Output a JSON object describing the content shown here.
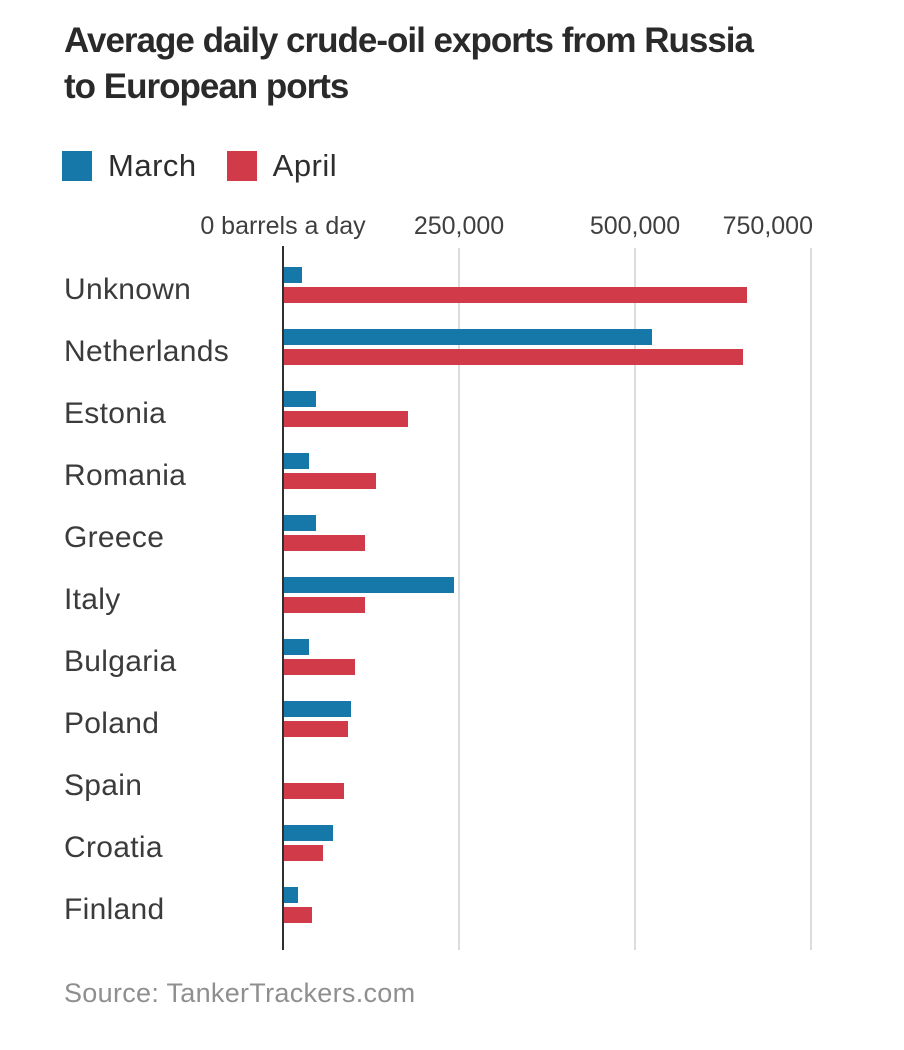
{
  "header": {
    "title_lines": [
      "Average daily crude-oil exports from Russia",
      "to European ports"
    ]
  },
  "legend": {
    "items": [
      {
        "label": "March",
        "color": "#1578a8"
      },
      {
        "label": "April",
        "color": "#d13b49"
      }
    ]
  },
  "axis": {
    "tick_labels": [
      "0 barrels a day",
      "250,000",
      "500,000",
      "750,000"
    ]
  },
  "source": "Source: TankerTrackers.com",
  "chart_data": {
    "type": "bar",
    "orientation": "horizontal",
    "title": "Average daily crude-oil exports from Russia to European ports",
    "xlabel": "barrels a day",
    "ylabel": "",
    "categories": [
      "Unknown",
      "Netherlands",
      "Estonia",
      "Romania",
      "Greece",
      "Italy",
      "Bulgaria",
      "Poland",
      "Spain",
      "Croatia",
      "Finland"
    ],
    "series": [
      {
        "name": "March",
        "color": "#1578a8",
        "values": [
          25000,
          520000,
          45000,
          35000,
          45000,
          240000,
          35000,
          95000,
          0,
          70000,
          20000
        ]
      },
      {
        "name": "April",
        "color": "#d13b49",
        "values": [
          655000,
          650000,
          175000,
          130000,
          115000,
          115000,
          100000,
          90000,
          85000,
          55000,
          40000
        ]
      }
    ],
    "xlim": [
      0,
      750000
    ],
    "x_ticks": [
      0,
      250000,
      500000,
      750000
    ],
    "grid": true,
    "legend_position": "top",
    "source": "TankerTrackers.com"
  }
}
